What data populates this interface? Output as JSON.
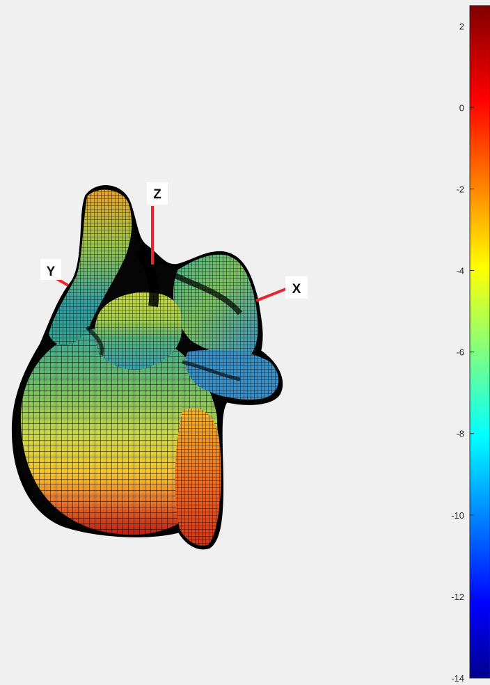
{
  "chart_data": {
    "type": "surface",
    "title": "",
    "axes_triad": {
      "labels": [
        "X",
        "Y",
        "Z"
      ],
      "line_color": "#e8242c"
    },
    "surface": {
      "mesh": true,
      "edge_color": "#000000",
      "colormap": "jet",
      "color_values_range": [
        -14,
        2.5
      ]
    },
    "colorbar": {
      "location": "right",
      "limits": [
        -14,
        2.5
      ],
      "ticks": [
        2,
        0,
        -2,
        -4,
        -6,
        -8,
        -10,
        -12,
        -14
      ],
      "tick_labels": [
        "2",
        "0",
        "-2",
        "-4",
        "-6",
        "-8",
        "-10",
        "-12",
        "-14"
      ],
      "colormap": "jet"
    }
  }
}
